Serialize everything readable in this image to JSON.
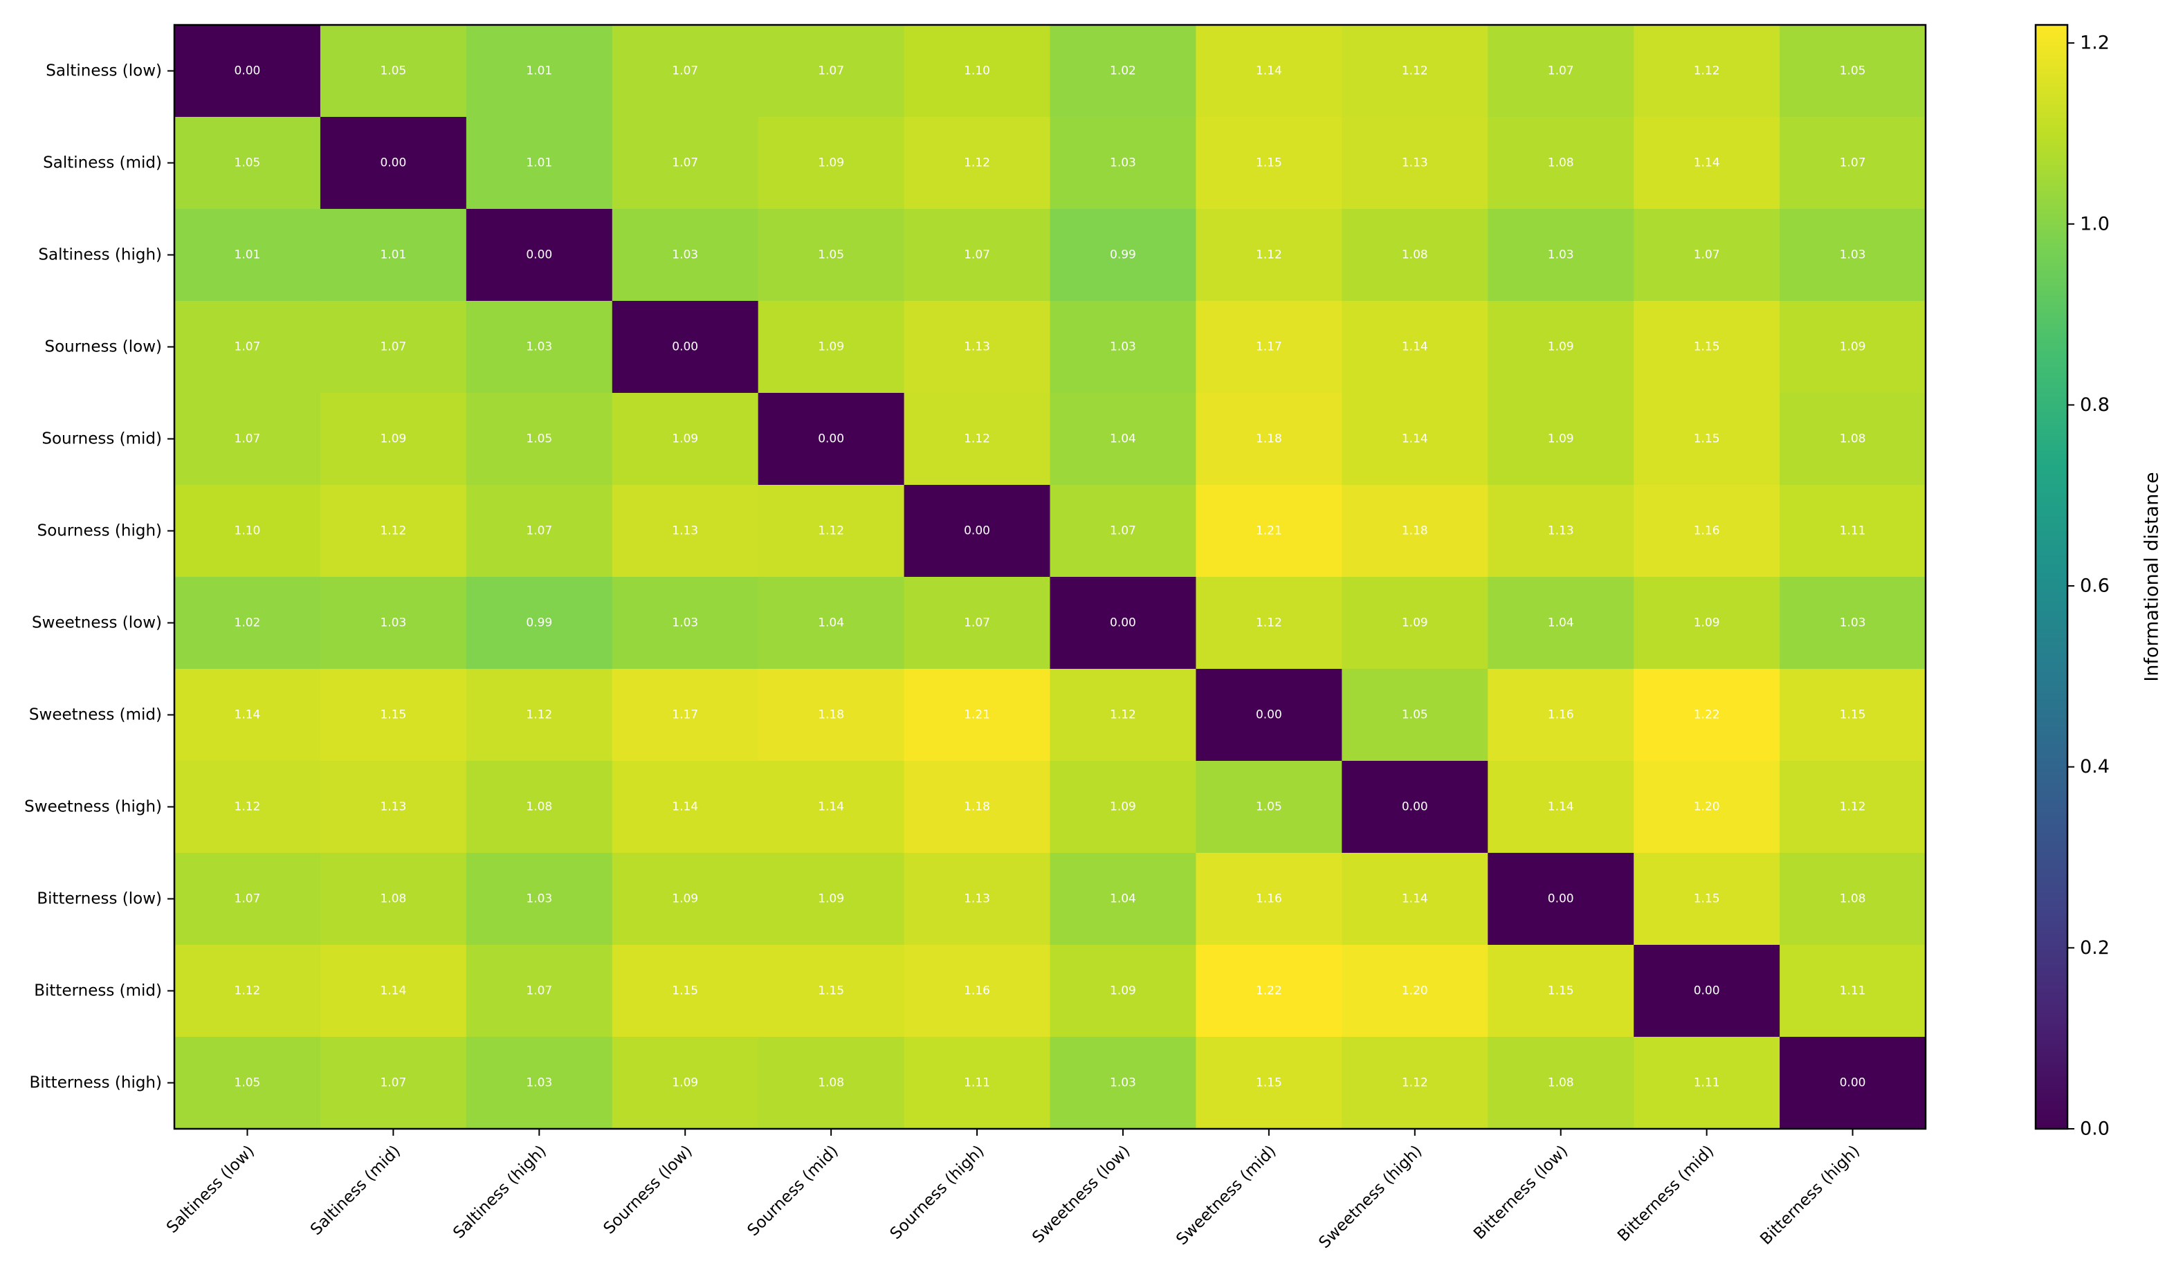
{
  "chart_data": {
    "type": "heatmap",
    "title": "",
    "xlabel": "",
    "ylabel": "",
    "labels": [
      "Saltiness (low)",
      "Saltiness (mid)",
      "Saltiness (high)",
      "Sourness (low)",
      "Sourness (mid)",
      "Sourness (high)",
      "Sweetness (low)",
      "Sweetness (mid)",
      "Sweetness (high)",
      "Bitterness (low)",
      "Bitterness (mid)",
      "Bitterness (high)"
    ],
    "matrix": [
      [
        0.0,
        1.05,
        1.01,
        1.07,
        1.07,
        1.1,
        1.02,
        1.14,
        1.12,
        1.07,
        1.12,
        1.05
      ],
      [
        1.05,
        0.0,
        1.01,
        1.07,
        1.09,
        1.12,
        1.03,
        1.15,
        1.13,
        1.08,
        1.14,
        1.07
      ],
      [
        1.01,
        1.01,
        0.0,
        1.03,
        1.05,
        1.07,
        0.99,
        1.12,
        1.08,
        1.03,
        1.07,
        1.03
      ],
      [
        1.07,
        1.07,
        1.03,
        0.0,
        1.09,
        1.13,
        1.03,
        1.17,
        1.14,
        1.09,
        1.15,
        1.09
      ],
      [
        1.07,
        1.09,
        1.05,
        1.09,
        0.0,
        1.12,
        1.04,
        1.18,
        1.14,
        1.09,
        1.15,
        1.08
      ],
      [
        1.1,
        1.12,
        1.07,
        1.13,
        1.12,
        0.0,
        1.07,
        1.21,
        1.18,
        1.13,
        1.16,
        1.11
      ],
      [
        1.02,
        1.03,
        0.99,
        1.03,
        1.04,
        1.07,
        0.0,
        1.12,
        1.09,
        1.04,
        1.09,
        1.03
      ],
      [
        1.14,
        1.15,
        1.12,
        1.17,
        1.18,
        1.21,
        1.12,
        0.0,
        1.05,
        1.16,
        1.22,
        1.15
      ],
      [
        1.12,
        1.13,
        1.08,
        1.14,
        1.14,
        1.18,
        1.09,
        1.05,
        0.0,
        1.14,
        1.2,
        1.12
      ],
      [
        1.07,
        1.08,
        1.03,
        1.09,
        1.09,
        1.13,
        1.04,
        1.16,
        1.14,
        0.0,
        1.15,
        1.08
      ],
      [
        1.12,
        1.14,
        1.07,
        1.15,
        1.15,
        1.16,
        1.09,
        1.22,
        1.2,
        1.15,
        0.0,
        1.11
      ],
      [
        1.05,
        1.07,
        1.03,
        1.09,
        1.08,
        1.11,
        1.03,
        1.15,
        1.12,
        1.08,
        1.11,
        0.0
      ]
    ],
    "value_format_decimals": 2,
    "colormap": "viridis",
    "vmin": 0.0,
    "vmax": 1.22,
    "colorbar": {
      "label": "Informational distance",
      "ticks": [
        0.0,
        0.2,
        0.4,
        0.6,
        0.8,
        1.0,
        1.2
      ],
      "tick_labels": [
        "0.0",
        "0.2",
        "0.4",
        "0.6",
        "0.8",
        "1.0",
        "1.2"
      ],
      "placement": "right"
    },
    "grid": false,
    "annotation_text_color": "#ffffff"
  }
}
